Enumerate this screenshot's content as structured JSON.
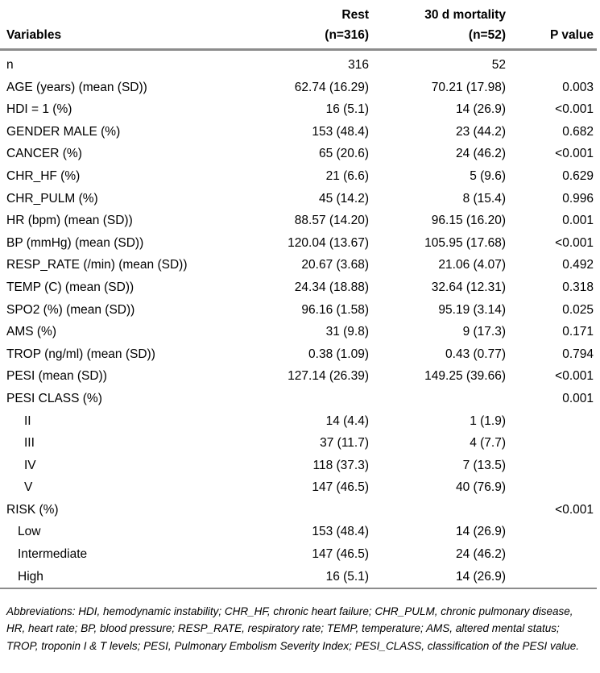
{
  "header": {
    "variables": "Variables",
    "rest_line1": "Rest",
    "rest_line2": "(n=316)",
    "mort_line1": "30 d mortality",
    "mort_line2": "(n=52)",
    "pvalue": "P value"
  },
  "rows": [
    {
      "label": "n",
      "rest": "316",
      "mort": "52",
      "p": "",
      "indent": 0
    },
    {
      "label": "AGE (years) (mean (SD))",
      "rest": "62.74 (16.29)",
      "mort": "70.21 (17.98)",
      "p": "0.003",
      "indent": 0
    },
    {
      "label": "HDI = 1 (%)",
      "rest": "16 (5.1)",
      "mort": "14 (26.9)",
      "p": "<0.001",
      "indent": 0
    },
    {
      "label": "GENDER MALE (%)",
      "rest": "153 (48.4)",
      "mort": "23 (44.2)",
      "p": "0.682",
      "indent": 0
    },
    {
      "label": "CANCER (%)",
      "rest": "65 (20.6)",
      "mort": "24 (46.2)",
      "p": "<0.001",
      "indent": 0
    },
    {
      "label": "CHR_HF (%)",
      "rest": "21 (6.6)",
      "mort": "5 (9.6)",
      "p": "0.629",
      "indent": 0
    },
    {
      "label": "CHR_PULM (%)",
      "rest": "45 (14.2)",
      "mort": "8 (15.4)",
      "p": "0.996",
      "indent": 0
    },
    {
      "label": "HR (bpm) (mean (SD))",
      "rest": "88.57 (14.20)",
      "mort": "96.15 (16.20)",
      "p": "0.001",
      "indent": 0
    },
    {
      "label": "BP (mmHg) (mean (SD))",
      "rest": "120.04 (13.67)",
      "mort": "105.95 (17.68)",
      "p": "<0.001",
      "indent": 0
    },
    {
      "label": "RESP_RATE (/min) (mean (SD))",
      "rest": "20.67 (3.68)",
      "mort": "21.06 (4.07)",
      "p": "0.492",
      "indent": 0
    },
    {
      "label": "TEMP (C) (mean (SD))",
      "rest": "24.34 (18.88)",
      "mort": "32.64 (12.31)",
      "p": "0.318",
      "indent": 0
    },
    {
      "label": "SPO2 (%) (mean (SD))",
      "rest": "96.16 (1.58)",
      "mort": "95.19 (3.14)",
      "p": "0.025",
      "indent": 0
    },
    {
      "label": "AMS (%)",
      "rest": "31 (9.8)",
      "mort": "9 (17.3)",
      "p": "0.171",
      "indent": 0
    },
    {
      "label": "TROP (ng/ml) (mean (SD))",
      "rest": "0.38 (1.09)",
      "mort": "0.43 (0.77)",
      "p": "0.794",
      "indent": 0
    },
    {
      "label": "PESI (mean (SD))",
      "rest": "127.14 (26.39)",
      "mort": "149.25 (39.66)",
      "p": "<0.001",
      "indent": 0
    },
    {
      "label": "PESI CLASS (%)",
      "rest": "",
      "mort": "",
      "p": "0.001",
      "indent": 0
    },
    {
      "label": "II",
      "rest": "14 (4.4)",
      "mort": "1 (1.9)",
      "p": "",
      "indent": 1
    },
    {
      "label": "III",
      "rest": "37 (11.7)",
      "mort": "4 (7.7)",
      "p": "",
      "indent": 1
    },
    {
      "label": "IV",
      "rest": "118 (37.3)",
      "mort": "7 (13.5)",
      "p": "",
      "indent": 1
    },
    {
      "label": "V",
      "rest": "147 (46.5)",
      "mort": "40 (76.9)",
      "p": "",
      "indent": 1
    },
    {
      "label": "RISK (%)",
      "rest": "",
      "mort": "",
      "p": "<0.001",
      "indent": 0
    },
    {
      "label": "Low",
      "rest": "153 (48.4)",
      "mort": "14 (26.9)",
      "p": "",
      "indent": 2
    },
    {
      "label": "Intermediate",
      "rest": "147 (46.5)",
      "mort": "24 (46.2)",
      "p": "",
      "indent": 2
    },
    {
      "label": "High",
      "rest": "16 (5.1)",
      "mort": "14 (26.9)",
      "p": "",
      "indent": 2
    }
  ],
  "footnote": "Abbreviations: HDI, hemodynamic instability; CHR_HF, chronic heart failure; CHR_PULM, chronic pulmonary disease, HR, heart rate; BP, blood pressure; RESP_RATE, respiratory rate; TEMP, temperature; AMS, altered mental status; TROP, troponin I & T levels; PESI, Pulmonary Embolism Severity Index; PESI_CLASS, classification of the PESI value."
}
